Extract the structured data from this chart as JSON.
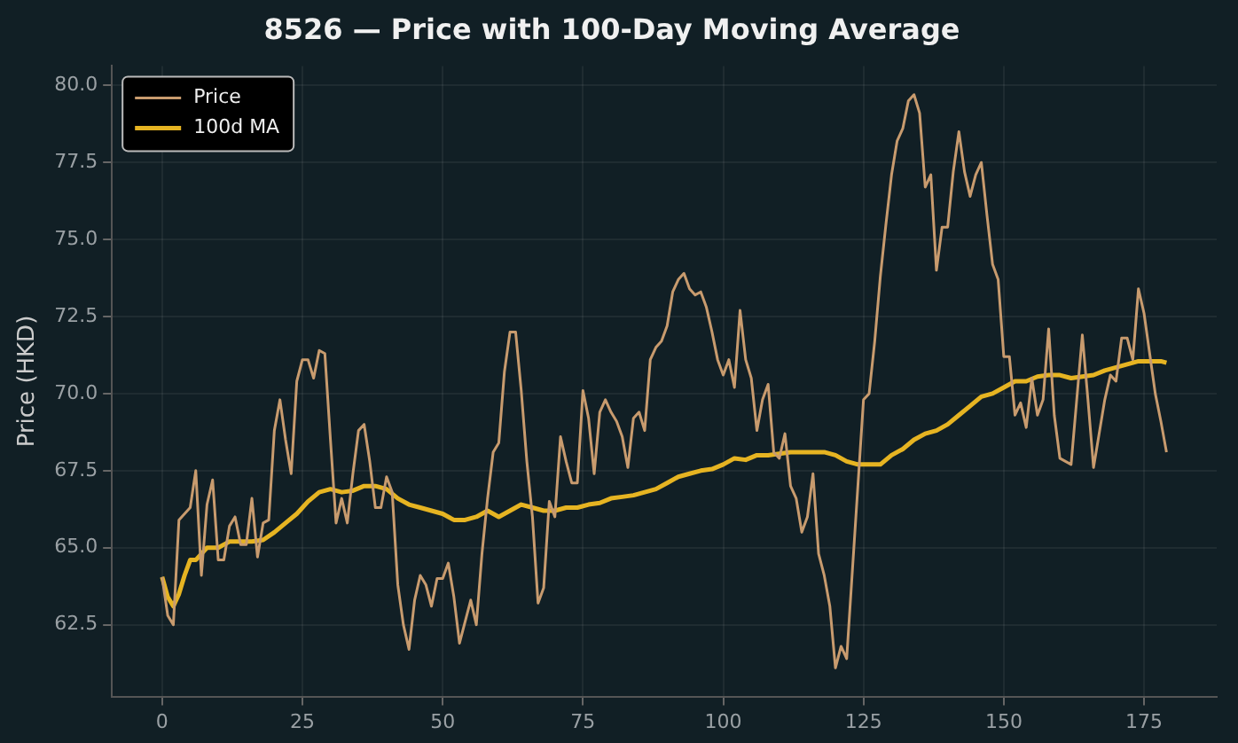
{
  "chart_data": {
    "type": "line",
    "title": "8526 — Price with 100-Day Moving Average",
    "ylabel": "Price (HKD)",
    "x": [
      0,
      1,
      2,
      3,
      4,
      5,
      6,
      7,
      8,
      9,
      10,
      11,
      12,
      13,
      14,
      15,
      16,
      17,
      18,
      19,
      20,
      21,
      22,
      23,
      24,
      25,
      26,
      27,
      28,
      29,
      30,
      31,
      32,
      33,
      34,
      35,
      36,
      37,
      38,
      39,
      40,
      41,
      42,
      43,
      44,
      45,
      46,
      47,
      48,
      49,
      50,
      51,
      52,
      53,
      54,
      55,
      56,
      57,
      58,
      59,
      60,
      61,
      62,
      63,
      64,
      65,
      66,
      67,
      68,
      69,
      70,
      71,
      72,
      73,
      74,
      75,
      76,
      77,
      78,
      79,
      80,
      81,
      82,
      83,
      84,
      85,
      86,
      87,
      88,
      89,
      90,
      91,
      92,
      93,
      94,
      95,
      96,
      97,
      98,
      99,
      100,
      101,
      102,
      103,
      104,
      105,
      106,
      107,
      108,
      109,
      110,
      111,
      112,
      113,
      114,
      115,
      116,
      117,
      118,
      119,
      120,
      121,
      122,
      123,
      124,
      125,
      126,
      127,
      128,
      129,
      130,
      131,
      132,
      133,
      134,
      135,
      136,
      137,
      138,
      139,
      140,
      141,
      142,
      143,
      144,
      145,
      146,
      147,
      148,
      149,
      150,
      151,
      152,
      153,
      154,
      155,
      156,
      157,
      158,
      159,
      160,
      161,
      162,
      163,
      164,
      165,
      166,
      167,
      168,
      169,
      170,
      171,
      172,
      173,
      174,
      175,
      176,
      177,
      178,
      179
    ],
    "series": [
      {
        "name": "Price",
        "color": "#c89b6e",
        "values": [
          64.05,
          62.8,
          62.5,
          65.9,
          66.1,
          66.3,
          67.5,
          64.1,
          66.4,
          67.2,
          64.6,
          64.6,
          65.7,
          66.0,
          65.1,
          65.1,
          66.6,
          64.7,
          65.8,
          65.9,
          68.8,
          69.8,
          68.5,
          67.4,
          70.4,
          71.1,
          71.1,
          70.5,
          71.4,
          71.3,
          68.5,
          65.8,
          66.6,
          65.8,
          67.4,
          68.8,
          69.0,
          67.8,
          66.3,
          66.3,
          67.3,
          66.8,
          63.8,
          62.5,
          61.7,
          63.3,
          64.1,
          63.8,
          63.1,
          64.0,
          64.0,
          64.5,
          63.4,
          61.9,
          62.6,
          63.3,
          62.5,
          64.8,
          66.6,
          68.1,
          68.4,
          70.7,
          72.0,
          72.0,
          70.1,
          67.8,
          66.0,
          63.2,
          63.7,
          66.5,
          66.0,
          68.6,
          67.8,
          67.1,
          67.1,
          70.1,
          69.2,
          67.4,
          69.4,
          69.8,
          69.4,
          69.1,
          68.6,
          67.6,
          69.2,
          69.4,
          68.8,
          71.1,
          71.5,
          71.7,
          72.2,
          73.3,
          73.7,
          73.9,
          73.4,
          73.2,
          73.3,
          72.8,
          72.0,
          71.1,
          70.6,
          71.1,
          70.2,
          72.7,
          71.1,
          70.5,
          68.8,
          69.8,
          70.3,
          68.1,
          67.9,
          68.7,
          67.0,
          66.6,
          65.5,
          66.0,
          67.4,
          64.8,
          64.1,
          63.1,
          61.1,
          61.8,
          61.4,
          64.2,
          67.0,
          69.8,
          70.0,
          71.7,
          73.8,
          75.5,
          77.1,
          78.2,
          78.6,
          79.5,
          79.7,
          79.1,
          76.7,
          77.1,
          74.0,
          75.4,
          75.4,
          77.2,
          78.5,
          77.2,
          76.4,
          77.1,
          77.5,
          75.8,
          74.2,
          73.7,
          71.2,
          71.2,
          69.3,
          69.7,
          68.9,
          70.5,
          69.3,
          69.8,
          72.1,
          69.3,
          67.9,
          67.8,
          67.7,
          69.8,
          71.9,
          69.8,
          67.6,
          68.7,
          69.8,
          70.6,
          70.4,
          71.8,
          71.8,
          71.1,
          73.4,
          72.6,
          71.3,
          70.0,
          69.1,
          68.1
        ]
      },
      {
        "name": "100d MA",
        "color": "#e6b422",
        "x": [
          0,
          1,
          2,
          3,
          4,
          5,
          6,
          7,
          8,
          10,
          12,
          14,
          16,
          18,
          20,
          22,
          24,
          26,
          28,
          30,
          32,
          34,
          36,
          38,
          40,
          42,
          44,
          46,
          48,
          50,
          52,
          54,
          56,
          58,
          60,
          62,
          64,
          66,
          68,
          70,
          72,
          74,
          76,
          78,
          80,
          82,
          84,
          86,
          88,
          90,
          92,
          94,
          96,
          98,
          100,
          102,
          104,
          106,
          108,
          110,
          112,
          114,
          116,
          118,
          120,
          122,
          124,
          126,
          128,
          130,
          132,
          134,
          136,
          138,
          140,
          142,
          144,
          146,
          148,
          150,
          152,
          154,
          156,
          158,
          160,
          162,
          164,
          166,
          168,
          170,
          172,
          174,
          176,
          178,
          179
        ],
        "values": [
          64.05,
          63.4,
          63.1,
          63.5,
          64.1,
          64.6,
          64.6,
          64.8,
          65.0,
          65.0,
          65.2,
          65.2,
          65.2,
          65.25,
          65.5,
          65.8,
          66.1,
          66.5,
          66.8,
          66.9,
          66.8,
          66.85,
          67.0,
          67.0,
          66.9,
          66.6,
          66.4,
          66.3,
          66.2,
          66.1,
          65.9,
          65.9,
          66.0,
          66.2,
          66.0,
          66.2,
          66.4,
          66.3,
          66.2,
          66.2,
          66.3,
          66.3,
          66.4,
          66.45,
          66.6,
          66.65,
          66.7,
          66.8,
          66.9,
          67.1,
          67.3,
          67.4,
          67.5,
          67.55,
          67.7,
          67.9,
          67.85,
          68.0,
          68.0,
          68.05,
          68.1,
          68.1,
          68.1,
          68.1,
          68.0,
          67.8,
          67.7,
          67.7,
          67.7,
          68.0,
          68.2,
          68.5,
          68.7,
          68.8,
          69.0,
          69.3,
          69.6,
          69.9,
          70.0,
          70.2,
          70.4,
          70.4,
          70.55,
          70.6,
          70.6,
          70.5,
          70.55,
          70.6,
          70.75,
          70.85,
          70.95,
          71.05,
          71.05,
          71.05,
          71.0
        ]
      }
    ],
    "xlim": [
      -8.95,
      187.95
    ],
    "ylim": [
      60.17,
      80.63
    ],
    "xticks": [
      0,
      25,
      50,
      75,
      100,
      125,
      150,
      175
    ],
    "yticks": [
      {
        "value": 62.5,
        "label": "62.5"
      },
      {
        "value": 65,
        "label": "65.0"
      },
      {
        "value": 67.5,
        "label": "67.5"
      },
      {
        "value": 70,
        "label": "70.0"
      },
      {
        "value": 72.5,
        "label": "72.5"
      },
      {
        "value": 75,
        "label": "75.0"
      },
      {
        "value": 77.5,
        "label": "77.5"
      },
      {
        "value": 80,
        "label": "80.0"
      }
    ],
    "grid": true,
    "legend": "top left",
    "marker": "none",
    "line_style": "solid"
  }
}
